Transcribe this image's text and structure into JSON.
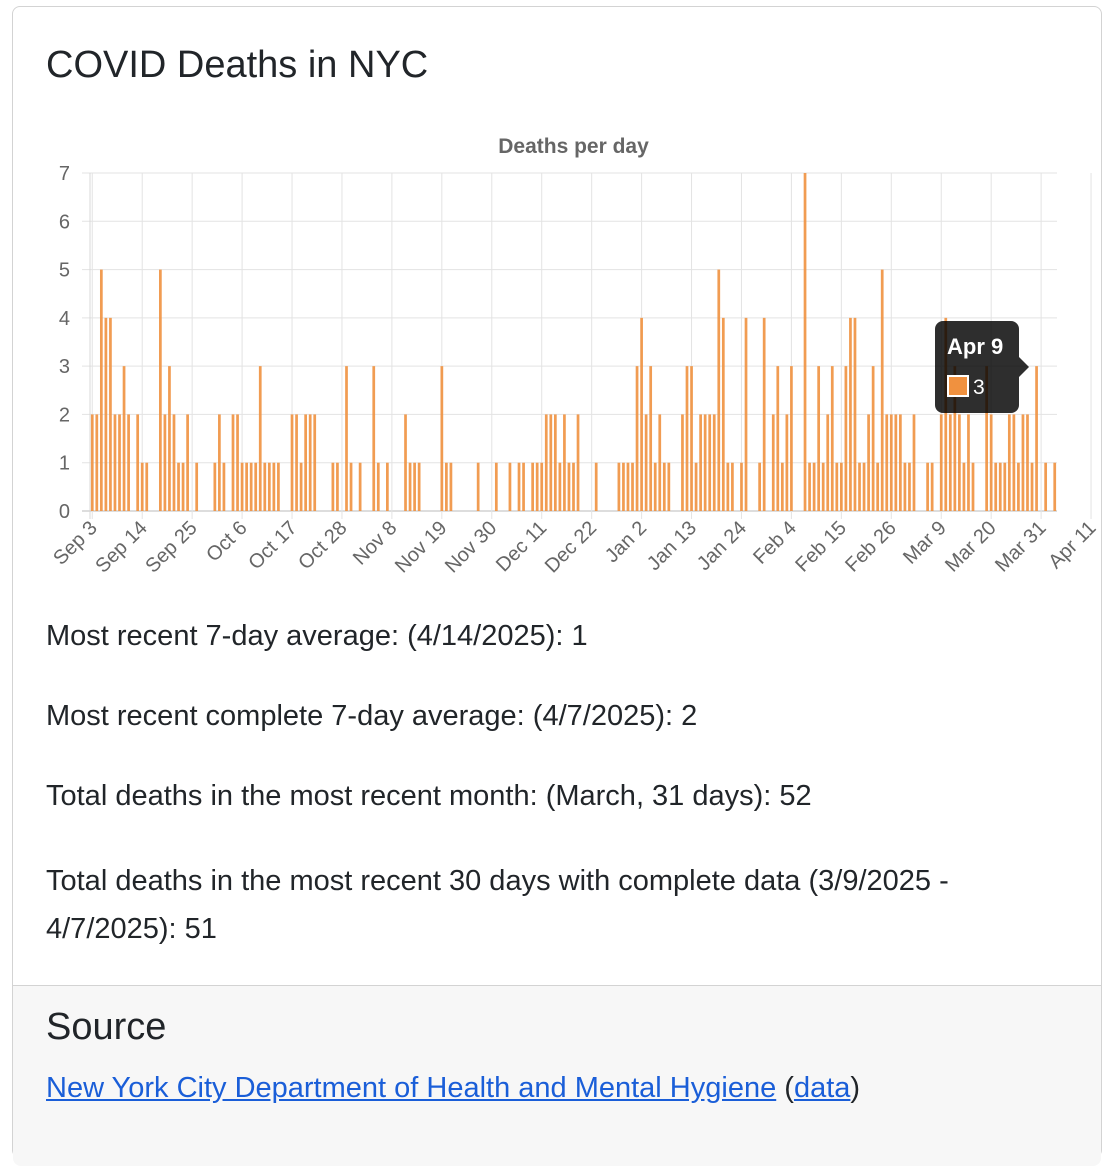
{
  "card": {
    "title": "COVID Deaths in NYC"
  },
  "chart_data": {
    "type": "bar",
    "title": "Deaths per day",
    "xlabel": "",
    "ylabel": "",
    "ylim": [
      0,
      7
    ],
    "yticks": [
      0,
      1,
      2,
      3,
      4,
      5,
      6,
      7
    ],
    "xtick_labels": [
      "Sep 3",
      "Sep 14",
      "Sep 25",
      "Oct 6",
      "Oct 17",
      "Oct 28",
      "Nov 8",
      "Nov 19",
      "Nov 30",
      "Dec 11",
      "Dec 22",
      "Jan 2",
      "Jan 13",
      "Jan 24",
      "Feb 4",
      "Feb 15",
      "Feb 26",
      "Mar 9",
      "Mar 20",
      "Mar 31",
      "Apr 11"
    ],
    "start_date": "2024-09-03",
    "values": [
      2,
      2,
      5,
      4,
      4,
      2,
      2,
      3,
      2,
      0,
      2,
      1,
      1,
      0,
      0,
      5,
      2,
      3,
      2,
      1,
      1,
      2,
      0,
      1,
      0,
      0,
      0,
      1,
      2,
      1,
      0,
      2,
      2,
      1,
      1,
      1,
      1,
      3,
      1,
      1,
      1,
      1,
      0,
      0,
      2,
      2,
      1,
      2,
      2,
      2,
      0,
      0,
      0,
      1,
      1,
      0,
      3,
      1,
      0,
      1,
      0,
      0,
      3,
      1,
      0,
      1,
      0,
      0,
      0,
      2,
      1,
      1,
      1,
      0,
      0,
      0,
      0,
      3,
      1,
      1,
      0,
      0,
      0,
      0,
      0,
      1,
      0,
      0,
      0,
      1,
      0,
      0,
      1,
      0,
      1,
      1,
      0,
      1,
      1,
      1,
      2,
      2,
      2,
      1,
      2,
      1,
      1,
      2,
      0,
      0,
      0,
      1,
      0,
      0,
      0,
      0,
      1,
      1,
      1,
      1,
      3,
      4,
      2,
      3,
      1,
      2,
      1,
      1,
      0,
      0,
      2,
      3,
      3,
      1,
      2,
      2,
      2,
      2,
      5,
      4,
      1,
      1,
      0,
      1,
      4,
      0,
      0,
      1,
      4,
      0,
      2,
      3,
      1,
      2,
      3,
      0,
      0,
      7,
      1,
      1,
      3,
      1,
      2,
      3,
      1,
      1,
      3,
      4,
      4,
      1,
      1,
      2,
      3,
      1,
      5,
      2,
      2,
      2,
      2,
      1,
      1,
      2,
      0,
      0,
      1,
      1,
      0,
      2,
      4,
      2,
      3,
      2,
      1,
      2,
      1,
      0,
      0,
      3,
      2,
      1,
      1,
      1,
      2,
      2,
      1,
      2,
      2,
      1,
      3,
      0,
      1,
      0,
      1
    ],
    "series": [
      {
        "color": "#f0913f"
      }
    ],
    "tooltip": {
      "label": "Apr 9",
      "value": "3",
      "color": "#f0913f"
    },
    "grid": true
  },
  "stats": {
    "line1": "Most recent 7-day average: (4/14/2025): 1",
    "line2": "Most recent complete 7-day average: (4/7/2025): 2",
    "line3": "Total deaths in the most recent month: (March, 31 days): 52",
    "line4": "Total deaths in the most recent 30 days with complete data (3/9/2025 - 4/7/2025): 51"
  },
  "source": {
    "title": "Source",
    "link_label": "New York City Department of Health and Mental Hygiene",
    "open_paren": "(",
    "data_label": "data",
    "close_paren": ")"
  }
}
